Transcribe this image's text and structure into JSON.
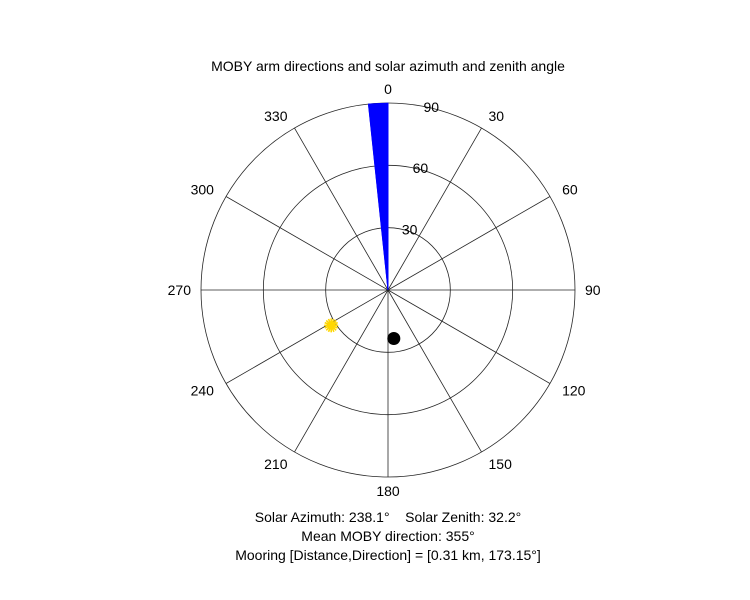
{
  "chart_data": {
    "type": "polar",
    "title": "MOBY arm directions and solar azimuth and zenith angle",
    "theta_zero": "top",
    "theta_direction": "clockwise",
    "theta_ticks": [
      "0",
      "30",
      "60",
      "90",
      "120",
      "150",
      "180",
      "210",
      "240",
      "270",
      "300",
      "330"
    ],
    "theta_tick_values": [
      0,
      30,
      60,
      90,
      120,
      150,
      180,
      210,
      240,
      270,
      300,
      330
    ],
    "r_ticks": [
      "30",
      "60",
      "90"
    ],
    "r_tick_values": [
      30,
      60,
      90
    ],
    "rlim": [
      0,
      90
    ],
    "series": [
      {
        "kind": "wedge",
        "color": "#0000ff",
        "r": 90,
        "theta_start": 354,
        "theta_end": 360,
        "theta_lines": [
          354,
          355,
          356,
          357,
          358,
          359,
          360
        ]
      },
      {
        "kind": "point",
        "marker": "sun",
        "color": "#ffd700",
        "theta": 238.1,
        "r": 32.2
      },
      {
        "kind": "point",
        "marker": "dot",
        "color": "#000000",
        "theta": 173.15,
        "r": 23.5
      }
    ],
    "annotations": [
      "Solar Azimuth: 238.1°    Solar Zenith: 32.2°",
      "Mean MOBY direction: 355°",
      "Mooring [Distance,Direction] = [0.31 km, 173.15°]"
    ]
  }
}
